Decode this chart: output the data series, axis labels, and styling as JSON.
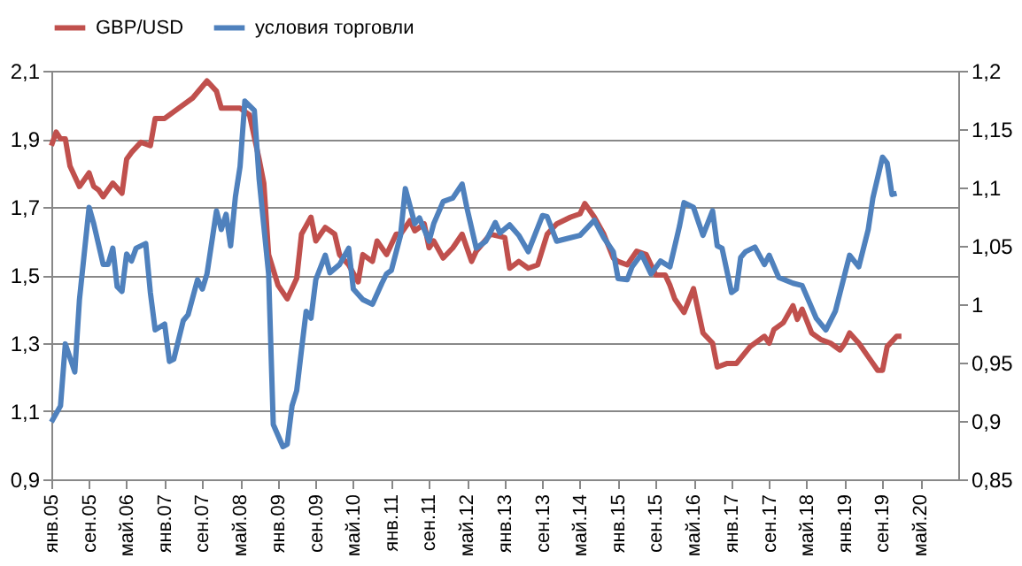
{
  "chart_data": {
    "type": "line",
    "xlim": [
      "2005-01",
      "2021-01"
    ],
    "xticks": [
      {
        "value": "2005-01",
        "label": "янв.05"
      },
      {
        "value": "2005-09",
        "label": "сен.05"
      },
      {
        "value": "2006-05",
        "label": "май.06"
      },
      {
        "value": "2007-01",
        "label": "янв.07"
      },
      {
        "value": "2007-09",
        "label": "сен.07"
      },
      {
        "value": "2008-05",
        "label": "май.08"
      },
      {
        "value": "2009-01",
        "label": "янв.09"
      },
      {
        "value": "2009-09",
        "label": "сен.09"
      },
      {
        "value": "2010-05",
        "label": "май.10"
      },
      {
        "value": "2011-01",
        "label": "янв.11"
      },
      {
        "value": "2011-09",
        "label": "сен.11"
      },
      {
        "value": "2012-05",
        "label": "май.12"
      },
      {
        "value": "2013-01",
        "label": "янв.13"
      },
      {
        "value": "2013-09",
        "label": "сен.13"
      },
      {
        "value": "2014-05",
        "label": "май.14"
      },
      {
        "value": "2015-01",
        "label": "янв.15"
      },
      {
        "value": "2015-09",
        "label": "сен.15"
      },
      {
        "value": "2016-05",
        "label": "май.16"
      },
      {
        "value": "2017-01",
        "label": "янв.17"
      },
      {
        "value": "2017-09",
        "label": "сен.17"
      },
      {
        "value": "2018-05",
        "label": "май.18"
      },
      {
        "value": "2019-01",
        "label": "янв.19"
      },
      {
        "value": "2019-09",
        "label": "сен.19"
      },
      {
        "value": "2020-05",
        "label": "май.20"
      }
    ],
    "ylim": [
      0.9,
      2.1
    ],
    "yticks": [
      {
        "value": 0.9,
        "label": "0,9"
      },
      {
        "value": 1.1,
        "label": "1,1"
      },
      {
        "value": 1.3,
        "label": "1,3"
      },
      {
        "value": 1.5,
        "label": "1,5"
      },
      {
        "value": 1.7,
        "label": "1,7"
      },
      {
        "value": 1.9,
        "label": "1,9"
      },
      {
        "value": 2.1,
        "label": "2,1"
      }
    ],
    "y2lim": [
      0.85,
      1.2
    ],
    "y2ticks": [
      {
        "value": 0.85,
        "label": "0,85"
      },
      {
        "value": 0.9,
        "label": "0,9"
      },
      {
        "value": 0.95,
        "label": "0,95"
      },
      1,
      {
        "value": 1.05,
        "label": "1,05"
      },
      {
        "value": 1.1,
        "label": "1,1"
      },
      {
        "value": 1.15,
        "label": "1,15"
      },
      {
        "value": 1.2,
        "label": "1,2"
      }
    ],
    "grid": "y",
    "legend": "top",
    "line_style": "solid",
    "series": [
      {
        "name": "GBP/USD",
        "color": "#c0504d",
        "x": [
          "2005-01",
          "2005-02",
          "2005-03",
          "2005-04",
          "2005-05",
          "2005-07",
          "2005-09",
          "2005-10",
          "2005-11",
          "2005-12",
          "2006-02",
          "2006-04",
          "2006-05",
          "2006-06",
          "2006-08",
          "2006-10",
          "2006-11",
          "2007-01",
          "2007-04",
          "2007-07",
          "2007-10",
          "2007-12",
          "2008-01",
          "2008-05",
          "2008-07",
          "2008-09",
          "2008-10",
          "2008-11",
          "2009-01",
          "2009-03",
          "2009-05",
          "2009-06",
          "2009-08",
          "2009-09",
          "2009-11",
          "2010-01",
          "2010-02",
          "2010-04",
          "2010-06",
          "2010-07",
          "2010-09",
          "2010-10",
          "2010-12",
          "2011-02",
          "2011-03",
          "2011-05",
          "2011-06",
          "2011-08",
          "2011-09",
          "2011-10",
          "2011-12",
          "2012-02",
          "2012-04",
          "2012-06",
          "2012-07",
          "2012-10",
          "2013-01",
          "2013-02",
          "2013-04",
          "2013-06",
          "2013-08",
          "2013-10",
          "2013-12",
          "2014-03",
          "2014-05",
          "2014-06",
          "2014-08",
          "2014-10",
          "2014-12",
          "2015-01",
          "2015-03",
          "2015-05",
          "2015-07",
          "2015-09",
          "2015-11",
          "2015-12",
          "2016-01",
          "2016-03",
          "2016-05",
          "2016-07",
          "2016-09",
          "2016-10",
          "2016-12",
          "2017-02",
          "2017-05",
          "2017-08",
          "2017-09",
          "2017-10",
          "2017-12",
          "2018-02",
          "2018-03",
          "2018-04",
          "2018-06",
          "2018-08",
          "2018-10",
          "2018-12",
          "2019-01",
          "2019-02",
          "2019-04",
          "2019-06",
          "2019-08",
          "2019-09",
          "2019-10",
          "2019-12",
          "2020-01"
        ],
        "values": [
          1.88,
          1.92,
          1.9,
          1.9,
          1.82,
          1.76,
          1.8,
          1.76,
          1.75,
          1.73,
          1.77,
          1.74,
          1.84,
          1.86,
          1.89,
          1.88,
          1.96,
          1.96,
          1.99,
          2.02,
          2.07,
          2.04,
          1.99,
          1.99,
          1.97,
          1.84,
          1.77,
          1.56,
          1.47,
          1.43,
          1.49,
          1.62,
          1.67,
          1.6,
          1.64,
          1.62,
          1.56,
          1.53,
          1.48,
          1.56,
          1.54,
          1.6,
          1.56,
          1.62,
          1.62,
          1.66,
          1.63,
          1.65,
          1.58,
          1.6,
          1.55,
          1.58,
          1.62,
          1.54,
          1.57,
          1.62,
          1.61,
          1.52,
          1.54,
          1.52,
          1.53,
          1.62,
          1.65,
          1.67,
          1.68,
          1.71,
          1.67,
          1.62,
          1.55,
          1.54,
          1.53,
          1.57,
          1.56,
          1.5,
          1.5,
          1.47,
          1.43,
          1.39,
          1.46,
          1.33,
          1.3,
          1.23,
          1.24,
          1.24,
          1.29,
          1.32,
          1.3,
          1.34,
          1.36,
          1.41,
          1.37,
          1.4,
          1.33,
          1.31,
          1.3,
          1.28,
          1.3,
          1.33,
          1.3,
          1.26,
          1.22,
          1.22,
          1.29,
          1.32,
          1.32
        ]
      },
      {
        "name": "условия торговли",
        "color": "#4f81bd",
        "axis": "y2",
        "x": [
          "2005-01",
          "2005-03",
          "2005-04",
          "2005-06",
          "2005-07",
          "2005-09",
          "2005-10",
          "2005-12",
          "2006-01",
          "2006-02",
          "2006-03",
          "2006-04",
          "2006-05",
          "2006-06",
          "2006-07",
          "2006-09",
          "2006-10",
          "2006-11",
          "2007-01",
          "2007-02",
          "2007-03",
          "2007-05",
          "2007-06",
          "2007-08",
          "2007-09",
          "2007-10",
          "2007-12",
          "2008-01",
          "2008-02",
          "2008-03",
          "2008-04",
          "2008-05",
          "2008-06",
          "2008-08",
          "2008-09",
          "2008-11",
          "2008-12",
          "2009-02",
          "2009-03",
          "2009-04",
          "2009-05",
          "2009-06",
          "2009-07",
          "2009-08",
          "2009-09",
          "2009-11",
          "2009-12",
          "2010-02",
          "2010-04",
          "2010-05",
          "2010-07",
          "2010-09",
          "2010-11",
          "2010-12",
          "2011-01",
          "2011-03",
          "2011-04",
          "2011-06",
          "2011-07",
          "2011-09",
          "2011-10",
          "2011-12",
          "2012-02",
          "2012-04",
          "2012-05",
          "2012-07",
          "2012-09",
          "2012-11",
          "2012-12",
          "2013-02",
          "2013-04",
          "2013-06",
          "2013-09",
          "2013-10",
          "2013-12",
          "2014-03",
          "2014-05",
          "2014-08",
          "2014-10",
          "2014-12",
          "2015-01",
          "2015-03",
          "2015-04",
          "2015-06",
          "2015-08",
          "2015-10",
          "2015-12",
          "2016-02",
          "2016-03",
          "2016-05",
          "2016-07",
          "2016-09",
          "2016-10",
          "2016-11",
          "2017-01",
          "2017-02",
          "2017-03",
          "2017-04",
          "2017-06",
          "2017-08",
          "2017-09",
          "2017-11",
          "2018-02",
          "2018-04",
          "2018-07",
          "2018-09",
          "2018-11",
          "2019-02",
          "2019-04",
          "2019-06",
          "2019-07",
          "2019-09",
          "2019-10",
          "2019-11",
          "2019-12"
        ],
        "values": [
          0.899,
          0.913,
          0.966,
          0.942,
          1.004,
          1.083,
          1.069,
          1.034,
          1.034,
          1.048,
          1.015,
          1.011,
          1.043,
          1.037,
          1.048,
          1.052,
          1.01,
          0.978,
          0.983,
          0.951,
          0.953,
          0.986,
          0.991,
          1.021,
          1.013,
          1.026,
          1.08,
          1.064,
          1.077,
          1.05,
          1.092,
          1.118,
          1.174,
          1.166,
          1.107,
          1.026,
          0.897,
          0.878,
          0.88,
          0.913,
          0.926,
          0.961,
          0.994,
          0.988,
          1.021,
          1.042,
          1.027,
          1.034,
          1.048,
          1.013,
          1.004,
          1.0,
          1.018,
          1.026,
          1.029,
          1.059,
          1.099,
          1.069,
          1.074,
          1.054,
          1.069,
          1.088,
          1.091,
          1.103,
          1.083,
          1.048,
          1.054,
          1.07,
          1.061,
          1.068,
          1.059,
          1.045,
          1.076,
          1.075,
          1.054,
          1.057,
          1.059,
          1.072,
          1.057,
          1.045,
          1.022,
          1.021,
          1.032,
          1.043,
          1.026,
          1.037,
          1.032,
          1.067,
          1.087,
          1.083,
          1.059,
          1.08,
          1.05,
          1.048,
          1.01,
          1.013,
          1.04,
          1.045,
          1.049,
          1.034,
          1.042,
          1.023,
          1.018,
          1.016,
          0.988,
          0.978,
          0.994,
          1.042,
          1.032,
          1.064,
          1.091,
          1.126,
          1.121,
          1.094,
          1.095
        ]
      }
    ]
  }
}
